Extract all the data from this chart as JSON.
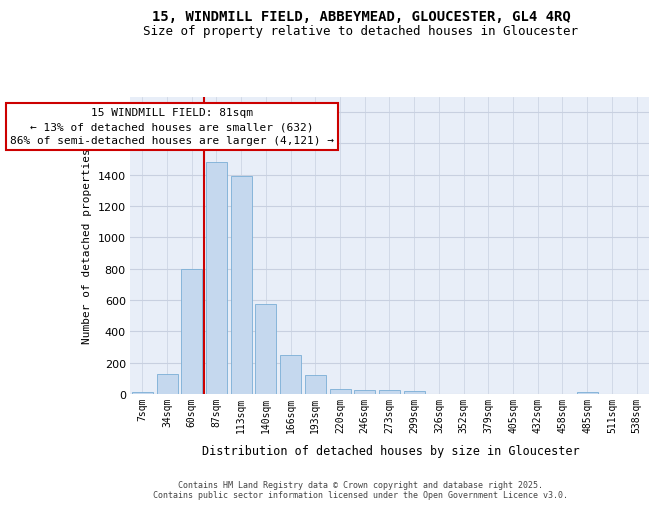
{
  "title_line1": "15, WINDMILL FIELD, ABBEYMEAD, GLOUCESTER, GL4 4RQ",
  "title_line2": "Size of property relative to detached houses in Gloucester",
  "xlabel": "Distribution of detached houses by size in Gloucester",
  "ylabel": "Number of detached properties",
  "categories": [
    "7sqm",
    "34sqm",
    "60sqm",
    "87sqm",
    "113sqm",
    "140sqm",
    "166sqm",
    "193sqm",
    "220sqm",
    "246sqm",
    "273sqm",
    "299sqm",
    "326sqm",
    "352sqm",
    "379sqm",
    "405sqm",
    "432sqm",
    "458sqm",
    "485sqm",
    "511sqm",
    "538sqm"
  ],
  "values": [
    10,
    130,
    800,
    1480,
    1390,
    575,
    250,
    120,
    35,
    28,
    25,
    18,
    0,
    0,
    0,
    0,
    0,
    0,
    12,
    0,
    0
  ],
  "bar_color": "#c5d8ee",
  "bar_edgecolor": "#7aaed6",
  "vline_color": "#cc0000",
  "vline_pos": 2.5,
  "annotation_text": "15 WINDMILL FIELD: 81sqm\n← 13% of detached houses are smaller (632)\n86% of semi-detached houses are larger (4,121) →",
  "annotation_box_edgecolor": "#cc0000",
  "annotation_box_facecolor": "#ffffff",
  "ylim": [
    0,
    1900
  ],
  "yticks": [
    0,
    200,
    400,
    600,
    800,
    1000,
    1200,
    1400,
    1600,
    1800
  ],
  "grid_color": "#c8d0e0",
  "background_color": "#e8eef8",
  "footer_text": "Contains HM Land Registry data © Crown copyright and database right 2025.\nContains public sector information licensed under the Open Government Licence v3.0.",
  "title_fontsize": 10,
  "subtitle_fontsize": 9,
  "tick_fontsize": 7,
  "ylabel_fontsize": 8,
  "xlabel_fontsize": 8.5,
  "annotation_fontsize": 8,
  "footer_fontsize": 6
}
